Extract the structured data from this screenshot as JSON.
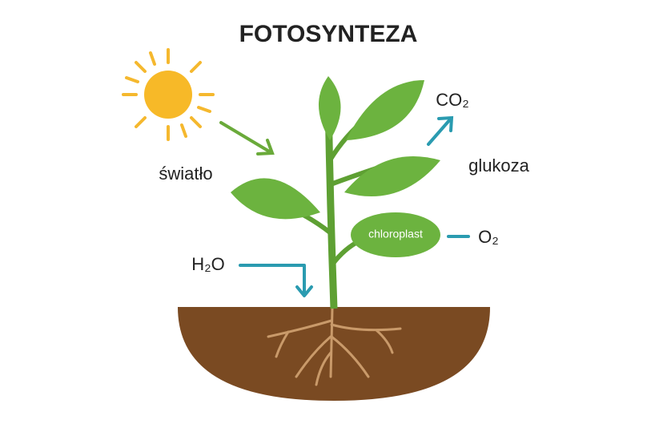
{
  "title": "FOTOSYNTEZA",
  "labels": {
    "light": "światło",
    "co2": "CO₂",
    "glucose": "glukoza",
    "chloroplast": "chloroplast",
    "o2": "O₂",
    "h2o": "H₂O"
  }
}
